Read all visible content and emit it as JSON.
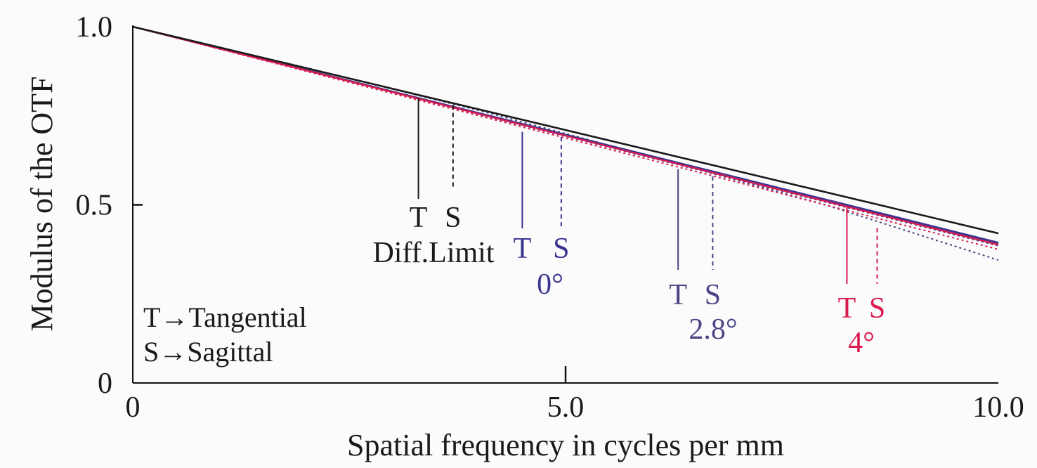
{
  "colors": {
    "diff": "#1a1a1a",
    "deg0": "#3a3590",
    "deg28": "#4a4585",
    "deg4": "#d81b4f",
    "background": "#fbfbfb"
  },
  "chart_data": {
    "type": "line",
    "title": "",
    "xlabel": "Spatial frequency in cycles per mm",
    "ylabel": "Modulus of the OTF",
    "xlim": [
      0,
      10.0
    ],
    "ylim": [
      0,
      1.0
    ],
    "x_ticks": [
      {
        "value": 0,
        "label": "0"
      },
      {
        "value": 5.0,
        "label": "5.0"
      },
      {
        "value": 10.0,
        "label": "10.0"
      }
    ],
    "y_ticks": [
      {
        "value": 0,
        "label": "0"
      },
      {
        "value": 0.5,
        "label": "0.5"
      },
      {
        "value": 1.0,
        "label": "1.0"
      }
    ],
    "grid": false,
    "series": [
      {
        "key": "diff_T",
        "colorKey": "diff",
        "dashed": false,
        "x": [
          0,
          10.0
        ],
        "y": [
          1.0,
          0.42
        ]
      },
      {
        "key": "diff_S",
        "colorKey": "diff",
        "dashed": false,
        "x": [
          0,
          10.0
        ],
        "y": [
          1.0,
          0.42
        ]
      },
      {
        "key": "deg0_T",
        "colorKey": "deg0",
        "dashed": false,
        "x": [
          0,
          10.0
        ],
        "y": [
          1.0,
          0.394
        ]
      },
      {
        "key": "deg0_S",
        "colorKey": "deg0",
        "dashed": true,
        "x": [
          0,
          10.0
        ],
        "y": [
          1.0,
          0.385
        ]
      },
      {
        "key": "deg28_T",
        "colorKey": "deg28",
        "dashed": false,
        "x": [
          0,
          10.0
        ],
        "y": [
          1.0,
          0.39
        ]
      },
      {
        "key": "deg28_S",
        "colorKey": "deg28",
        "dashed": true,
        "x": [
          0,
          2.0,
          4.0,
          6.0,
          8.0,
          10.0
        ],
        "y": [
          1.0,
          0.885,
          0.765,
          0.635,
          0.5,
          0.345
        ]
      },
      {
        "key": "deg4_T",
        "colorKey": "deg4",
        "dashed": false,
        "x": [
          0,
          10.0
        ],
        "y": [
          1.0,
          0.388
        ]
      },
      {
        "key": "deg4_S",
        "colorKey": "deg4",
        "dashed": true,
        "x": [
          0,
          10.0
        ],
        "y": [
          1.0,
          0.375
        ]
      }
    ],
    "markers": [
      {
        "group": "diff",
        "colorKey": "diff",
        "T": {
          "x": 3.3,
          "y": 0.8,
          "label": "T"
        },
        "S": {
          "x": 3.7,
          "y": 0.78,
          "label": "S"
        },
        "caption": "Diff.Limit"
      },
      {
        "group": "deg0",
        "colorKey": "deg0",
        "T": {
          "x": 4.5,
          "y": 0.705,
          "label": "T"
        },
        "S": {
          "x": 4.95,
          "y": 0.69,
          "label": "S"
        },
        "caption": "0°"
      },
      {
        "group": "deg28",
        "colorKey": "deg28",
        "T": {
          "x": 6.3,
          "y": 0.6,
          "label": "T"
        },
        "S": {
          "x": 6.7,
          "y": 0.58,
          "label": "S"
        },
        "caption": "2.8°"
      },
      {
        "group": "deg4",
        "colorKey": "deg4",
        "T": {
          "x": 8.25,
          "y": 0.495,
          "label": "T"
        },
        "S": {
          "x": 8.6,
          "y": 0.435,
          "label": "S"
        },
        "caption": "4°"
      }
    ],
    "legend": {
      "placement": "bottom-left",
      "lines": [
        "T→Tangential",
        "S→Sagittal"
      ]
    }
  }
}
